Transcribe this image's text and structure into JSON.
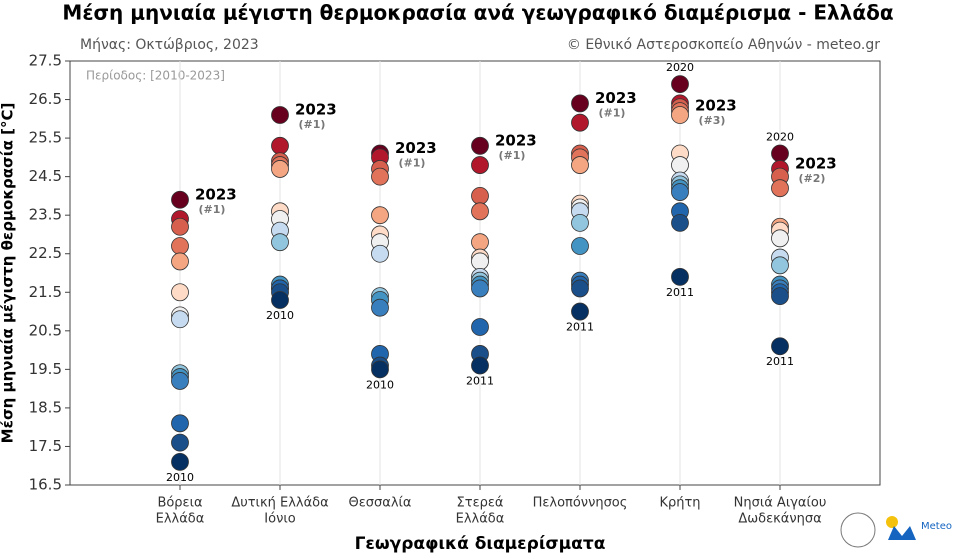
{
  "chart_data": {
    "type": "strip",
    "title": "Μέση μηνιαία μέγιστη θερμοκρασία ανά γεωγραφικό διαμέρισμα - Ελλάδα",
    "subtitle_left": "Μήνας: Οκτώβριος, 2023",
    "subtitle_right": "© Εθνικό Αστεροσκοπείο Αθηνών - meteo.gr",
    "period": "Περίοδος: [2010-2023]",
    "y_label": "Μέση μηνιαία μέγιστη θερμοκρασία [°C]",
    "x_label": "Γεωγραφικά διαμερίσματα",
    "logo": "Meteo",
    "ylim": [
      16.5,
      27.5
    ],
    "yticks": [
      16.5,
      17.5,
      18.5,
      19.5,
      20.5,
      21.5,
      22.5,
      23.5,
      24.5,
      25.5,
      26.5,
      27.5
    ],
    "grid": true,
    "palette": [
      "#053061",
      "#1a4f8a",
      "#2166ac",
      "#3a7fbd",
      "#4393c3",
      "#92c5de",
      "#c6dbef",
      "#f0f0f0",
      "#fddbc7",
      "#f4a582",
      "#e0735a",
      "#d6604d",
      "#b2182b",
      "#67001f"
    ],
    "groups": [
      {
        "label": [
          "Βόρεια",
          "Ελλάδα"
        ],
        "values": [
          23.9,
          23.4,
          23.2,
          22.7,
          22.3,
          21.5,
          20.9,
          20.8,
          19.4,
          19.3,
          19.2,
          18.1,
          17.6,
          17.1
        ],
        "record_year": "2023",
        "record_rank": "(#1)",
        "min_year": "2010"
      },
      {
        "label": [
          "Δυτική Ελλάδα",
          "Ιόνιο"
        ],
        "values": [
          26.1,
          25.3,
          24.9,
          24.8,
          24.7,
          23.6,
          23.4,
          23.1,
          22.8,
          21.7,
          21.6,
          21.6,
          21.5,
          21.3
        ],
        "record_year": "2023",
        "record_rank": "(#1)",
        "min_year": "2010"
      },
      {
        "label": [
          "Θεσσαλία"
        ],
        "values": [
          25.1,
          25.0,
          24.7,
          24.5,
          23.5,
          23.0,
          22.8,
          22.5,
          21.4,
          21.3,
          21.1,
          19.9,
          19.6,
          19.5
        ],
        "record_year": "2023",
        "record_rank": "(#1)",
        "min_year": "2010"
      },
      {
        "label": [
          "Στερεά",
          "Ελλάδα"
        ],
        "values": [
          25.3,
          24.8,
          24.0,
          23.6,
          22.8,
          22.4,
          22.3,
          21.9,
          21.8,
          21.7,
          21.6,
          20.6,
          19.9,
          19.6
        ],
        "record_year": "2023",
        "record_rank": "(#1)",
        "min_year": "2011"
      },
      {
        "label": [
          "Πελοπόννησος"
        ],
        "values": [
          26.4,
          25.9,
          25.1,
          25.0,
          24.8,
          23.8,
          23.7,
          23.6,
          23.3,
          22.7,
          21.8,
          21.7,
          21.6,
          21.0
        ],
        "record_year": "2023",
        "record_rank": "(#1)",
        "min_year": "2011"
      },
      {
        "label": [
          "Κρήτη"
        ],
        "values": [
          26.2,
          26.9,
          26.4,
          26.1,
          25.1,
          24.8,
          24.4,
          24.3,
          24.2,
          24.1,
          23.6,
          23.3,
          21.9,
          26.3
        ],
        "record_year": "2023",
        "record_rank": "(#3)",
        "min_year": "2011",
        "max_year": "2020"
      },
      {
        "label": [
          "Νησιά Αιγαίου",
          "Δωδεκάνησα"
        ],
        "values": [
          24.7,
          25.1,
          24.5,
          24.2,
          23.2,
          23.1,
          22.9,
          22.4,
          22.2,
          21.7,
          21.6,
          21.5,
          21.4,
          20.1
        ],
        "record_year": "2023",
        "record_rank": "(#2)",
        "min_year": "2011",
        "max_year": "2020"
      }
    ]
  }
}
